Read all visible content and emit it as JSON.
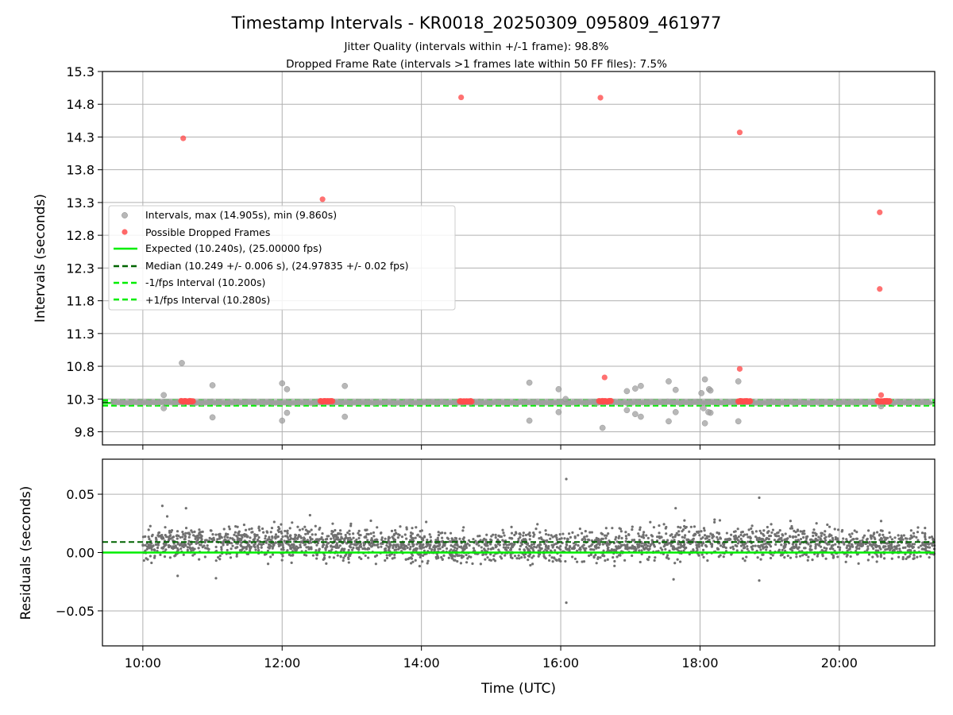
{
  "chart_data": {
    "type": "scatter",
    "title": "Timestamp Intervals - KR0018_20250309_095809_461977",
    "subtitle_lines": [
      "Jitter Quality (intervals within +/-1 frame): 98.8%",
      "Dropped Frame Rate (intervals >1 frames late within 50 FF files): 7.5%"
    ],
    "xlabel": "Time (UTC)",
    "x_ticks": [
      "10:00",
      "12:00",
      "14:00",
      "16:00",
      "18:00",
      "20:00"
    ],
    "x_tick_hours": [
      10,
      12,
      14,
      16,
      18,
      20
    ],
    "x_range_hours": [
      9.42,
      21.37
    ],
    "grid": true,
    "top": {
      "ylabel": "Intervals (seconds)",
      "y_ticks": [
        "9.8",
        "10.3",
        "10.8",
        "11.3",
        "11.8",
        "12.3",
        "12.8",
        "13.3",
        "13.8",
        "14.3",
        "14.8",
        "15.3"
      ],
      "ylim": [
        9.6,
        15.3
      ],
      "expected": 10.24,
      "median": 10.249,
      "minus_interval": 10.2,
      "plus_interval": 10.28,
      "intervals_outliers": [
        {
          "x": 10.3,
          "y": 10.36
        },
        {
          "x": 10.3,
          "y": 10.16
        },
        {
          "x": 10.56,
          "y": 10.85
        },
        {
          "x": 11.0,
          "y": 10.51
        },
        {
          "x": 11.0,
          "y": 10.02
        },
        {
          "x": 12.0,
          "y": 10.54
        },
        {
          "x": 12.07,
          "y": 10.45
        },
        {
          "x": 12.0,
          "y": 9.97
        },
        {
          "x": 12.07,
          "y": 10.09
        },
        {
          "x": 12.9,
          "y": 10.5
        },
        {
          "x": 12.9,
          "y": 10.03
        },
        {
          "x": 15.55,
          "y": 10.55
        },
        {
          "x": 15.55,
          "y": 9.97
        },
        {
          "x": 15.97,
          "y": 10.45
        },
        {
          "x": 15.97,
          "y": 10.1
        },
        {
          "x": 16.07,
          "y": 10.3
        },
        {
          "x": 16.6,
          "y": 9.86
        },
        {
          "x": 16.95,
          "y": 10.42
        },
        {
          "x": 17.07,
          "y": 10.46
        },
        {
          "x": 17.15,
          "y": 10.5
        },
        {
          "x": 16.95,
          "y": 10.13
        },
        {
          "x": 17.07,
          "y": 10.07
        },
        {
          "x": 17.15,
          "y": 10.03
        },
        {
          "x": 17.55,
          "y": 10.57
        },
        {
          "x": 17.65,
          "y": 10.44
        },
        {
          "x": 17.55,
          "y": 9.96
        },
        {
          "x": 17.65,
          "y": 10.1
        },
        {
          "x": 18.07,
          "y": 10.6
        },
        {
          "x": 18.13,
          "y": 10.45
        },
        {
          "x": 18.02,
          "y": 10.39
        },
        {
          "x": 18.15,
          "y": 10.43
        },
        {
          "x": 18.05,
          "y": 10.16
        },
        {
          "x": 18.15,
          "y": 10.09
        },
        {
          "x": 18.12,
          "y": 10.1
        },
        {
          "x": 18.07,
          "y": 9.93
        },
        {
          "x": 18.55,
          "y": 10.57
        },
        {
          "x": 18.55,
          "y": 9.96
        },
        {
          "x": 20.6,
          "y": 10.19
        }
      ],
      "dropped_frames": [
        {
          "x": 10.58,
          "y": 14.28
        },
        {
          "x": 12.58,
          "y": 13.35
        },
        {
          "x": 14.57,
          "y": 14.905
        },
        {
          "x": 16.57,
          "y": 14.9
        },
        {
          "x": 16.63,
          "y": 10.63
        },
        {
          "x": 18.57,
          "y": 14.37
        },
        {
          "x": 18.57,
          "y": 10.76
        },
        {
          "x": 20.58,
          "y": 13.15
        },
        {
          "x": 20.58,
          "y": 11.98
        },
        {
          "x": 20.6,
          "y": 10.36
        }
      ],
      "dropped_frame_clusters": [
        {
          "x_start": 10.55,
          "x_end": 10.72,
          "y": 10.265
        },
        {
          "x_start": 12.55,
          "x_end": 12.72,
          "y": 10.265
        },
        {
          "x_start": 14.55,
          "x_end": 14.72,
          "y": 10.265
        },
        {
          "x_start": 16.55,
          "x_end": 16.72,
          "y": 10.265
        },
        {
          "x_start": 18.55,
          "x_end": 18.72,
          "y": 10.265
        },
        {
          "x_start": 20.55,
          "x_end": 20.72,
          "y": 10.265
        }
      ]
    },
    "bottom": {
      "ylabel": "Residuals (seconds)",
      "y_ticks": [
        "0.05",
        "0.00",
        "−0.05"
      ],
      "y_tick_values": [
        0.05,
        0.0,
        -0.05
      ],
      "ylim": [
        -0.08,
        0.08
      ],
      "median_residual": 0.009,
      "expected_residual": 0.0,
      "residual_band": {
        "center": 0.007,
        "spread": 0.009
      },
      "residual_outliers": [
        {
          "x": 16.08,
          "y": 0.063
        },
        {
          "x": 16.08,
          "y": -0.043
        },
        {
          "x": 18.85,
          "y": 0.047
        },
        {
          "x": 17.65,
          "y": 0.038
        },
        {
          "x": 10.28,
          "y": 0.04
        },
        {
          "x": 10.62,
          "y": 0.038
        },
        {
          "x": 10.5,
          "y": -0.02
        },
        {
          "x": 11.05,
          "y": -0.022
        },
        {
          "x": 17.62,
          "y": -0.023
        },
        {
          "x": 18.85,
          "y": -0.024
        },
        {
          "x": 20.6,
          "y": 0.027
        },
        {
          "x": 12.4,
          "y": 0.032
        },
        {
          "x": 10.35,
          "y": 0.031
        }
      ]
    },
    "legend": {
      "placement": "center-left",
      "entries": [
        {
          "label": "Intervals, max (14.905s), min (9.860s)",
          "marker": "circle",
          "color": "#a0a0a0"
        },
        {
          "label": "Possible Dropped Frames",
          "marker": "circle",
          "color": "#ff4d4d"
        },
        {
          "label": "Expected (10.240s), (25.00000 fps)",
          "marker": "solid-line",
          "color": "#00ee00"
        },
        {
          "label": "Median (10.249 +/- 0.006 s), (24.97835 +/- 0.02 fps)",
          "marker": "dashed-line",
          "color": "#006400"
        },
        {
          "label": "-1/fps Interval (10.200s)",
          "marker": "dashed-line",
          "color": "#00ee00"
        },
        {
          "label": "+1/fps Interval (10.280s)",
          "marker": "dashed-line",
          "color": "#00ee00"
        }
      ]
    },
    "colors": {
      "interval_point": "#a0a0a0",
      "dropped_point": "#ff4d4d",
      "expected_line": "#00ee00",
      "median_line": "#006400",
      "residual_point": "#707070",
      "grid": "#b0b0b0"
    }
  }
}
